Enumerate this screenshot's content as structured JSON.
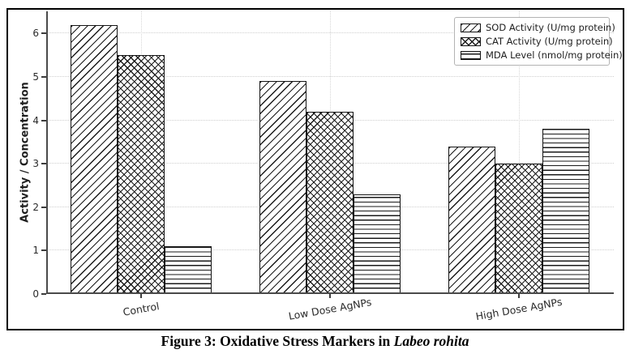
{
  "figure": {
    "caption_prefix": "Figure 3: Oxidative Stress Markers in",
    "caption_species": "Labeo rohita"
  },
  "chart_data": {
    "type": "bar",
    "title": "",
    "xlabel": "",
    "ylabel": "Activity / Concentration",
    "categories": [
      "Control",
      "Low Dose AgNPs",
      "High Dose AgNPs"
    ],
    "series": [
      {
        "name": "SOD Activity (U/mg protein)",
        "hatch": "diagonal",
        "values": [
          6.2,
          4.9,
          3.4
        ]
      },
      {
        "name": "CAT Activity (U/mg protein)",
        "hatch": "crosshatch",
        "values": [
          5.5,
          4.2,
          3.0
        ]
      },
      {
        "name": "MDA Level (nmol/mg protein)",
        "hatch": "horizontal",
        "values": [
          1.1,
          2.3,
          3.8
        ]
      }
    ],
    "yticks": [
      0,
      1,
      2,
      3,
      4,
      5,
      6
    ],
    "ylim": [
      0,
      6.51
    ],
    "grid": true,
    "legend_position": "upper right",
    "bar_facecolor": "#ffffff",
    "bar_edgecolor": "#141414",
    "grid_color": "#cfcfcf",
    "spine_color": "#4a4a4a"
  }
}
